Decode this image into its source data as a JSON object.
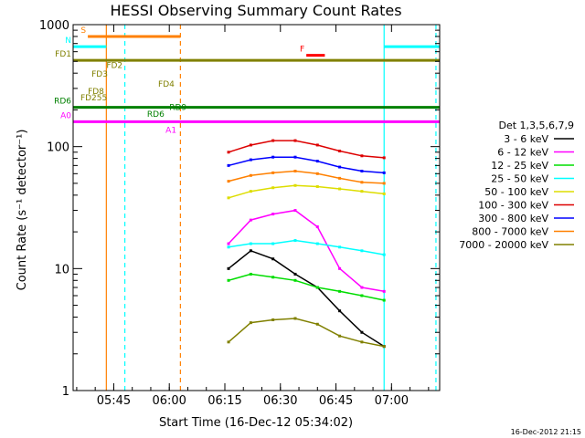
{
  "chart_data": {
    "type": "line",
    "title": "HESSI Observing Summary Count Rates",
    "xlabel": "Start Time (16-Dec-12 05:34:02)",
    "ylabel": "Count Rate (s⁻¹ detector⁻¹)",
    "y_scale": "log",
    "ylim": [
      1,
      1000
    ],
    "xlim": [
      "05:34:02",
      "07:13:00"
    ],
    "x_tick_labels": [
      "05:45",
      "06:00",
      "06:15",
      "06:30",
      "06:45",
      "07:00"
    ],
    "y_tick_labels": [
      "1",
      "10",
      "100",
      "1000"
    ],
    "footer_timestamp": "16-Dec-2012 21:15",
    "legend_title": "Det 1,3,5,6,7,9",
    "legend_position": "right",
    "series": [
      {
        "name": "3 - 6 keV",
        "color": "#000000",
        "x": [
          "06:16",
          "06:22",
          "06:28",
          "06:34",
          "06:40",
          "06:46",
          "06:52",
          "06:58"
        ],
        "y": [
          10,
          14,
          12,
          9,
          7,
          4.5,
          3,
          2.3
        ]
      },
      {
        "name": "6 - 12 keV",
        "color": "#ff00ff",
        "x": [
          "06:16",
          "06:22",
          "06:28",
          "06:34",
          "06:40",
          "06:46",
          "06:52",
          "06:58"
        ],
        "y": [
          16,
          25,
          28,
          30,
          22,
          10,
          7,
          6.5
        ]
      },
      {
        "name": "12 - 25 keV",
        "color": "#00dd00",
        "x": [
          "06:16",
          "06:22",
          "06:28",
          "06:34",
          "06:40",
          "06:46",
          "06:52",
          "06:58"
        ],
        "y": [
          8,
          9,
          8.5,
          8,
          7,
          6.5,
          6,
          5.5
        ]
      },
      {
        "name": "25 - 50 keV",
        "color": "#00ffff",
        "x": [
          "06:16",
          "06:22",
          "06:28",
          "06:34",
          "06:40",
          "06:46",
          "06:52",
          "06:58"
        ],
        "y": [
          15,
          16,
          16,
          17,
          16,
          15,
          14,
          13
        ]
      },
      {
        "name": "50 - 100 keV",
        "color": "#dddd00",
        "x": [
          "06:16",
          "06:22",
          "06:28",
          "06:34",
          "06:40",
          "06:46",
          "06:52",
          "06:58"
        ],
        "y": [
          38,
          43,
          46,
          48,
          47,
          45,
          43,
          41
        ]
      },
      {
        "name": "100 - 300 keV",
        "color": "#dd0000",
        "x": [
          "06:16",
          "06:22",
          "06:28",
          "06:34",
          "06:40",
          "06:46",
          "06:52",
          "06:58"
        ],
        "y": [
          90,
          103,
          112,
          112,
          103,
          92,
          84,
          81
        ]
      },
      {
        "name": "300 - 800 keV",
        "color": "#0000ff",
        "x": [
          "06:16",
          "06:22",
          "06:28",
          "06:34",
          "06:40",
          "06:46",
          "06:52",
          "06:58"
        ],
        "y": [
          70,
          78,
          82,
          82,
          76,
          68,
          63,
          61
        ]
      },
      {
        "name": "800 - 7000 keV",
        "color": "#ff8000",
        "x": [
          "06:16",
          "06:22",
          "06:28",
          "06:34",
          "06:40",
          "06:46",
          "06:52",
          "06:58"
        ],
        "y": [
          52,
          58,
          61,
          63,
          60,
          55,
          51,
          50
        ]
      },
      {
        "name": "7000 - 20000 keV",
        "color": "#808000",
        "x": [
          "06:16",
          "06:22",
          "06:28",
          "06:34",
          "06:40",
          "06:46",
          "06:52",
          "06:58"
        ],
        "y": [
          2.5,
          3.6,
          3.8,
          3.9,
          3.5,
          2.8,
          2.5,
          2.3
        ]
      }
    ],
    "state_bars": [
      {
        "label": "S",
        "color": "#ff8000",
        "y": 800,
        "x1": "05:38",
        "x2": "06:03"
      },
      {
        "label": "N",
        "color": "#00ffff",
        "y": 660,
        "x1": "05:34",
        "x2": "05:43"
      },
      {
        "label": "",
        "color": "#00ffff",
        "y": 660,
        "x1": "06:58",
        "x2": "07:13"
      },
      {
        "label": "F",
        "color": "#ff0000",
        "y": 560,
        "x1": "06:37",
        "x2": "06:42"
      },
      {
        "label": "FD1",
        "color": "#808000",
        "y": 510,
        "x1": "05:34",
        "x2": "07:13"
      },
      {
        "label": "RD6",
        "color": "#008000",
        "y": 210,
        "x1": "05:34",
        "x2": "07:13"
      },
      {
        "label": "A0",
        "color": "#ff00ff",
        "y": 160,
        "x1": "05:34",
        "x2": "07:13"
      }
    ],
    "annotations": [
      {
        "text": "FD2",
        "color": "#808000",
        "x": "05:43",
        "y": 440
      },
      {
        "text": "FD3",
        "color": "#808000",
        "x": "05:39",
        "y": 375
      },
      {
        "text": "FD4",
        "color": "#808000",
        "x": "05:57",
        "y": 310
      },
      {
        "text": "FD8",
        "color": "#808000",
        "x": "05:38",
        "y": 270
      },
      {
        "text": "FD255",
        "color": "#808000",
        "x": "05:36",
        "y": 240
      },
      {
        "text": "RD6",
        "color": "#008000",
        "x": "05:54",
        "y": 175
      },
      {
        "text": "RD9",
        "color": "#008000",
        "x": "06:00",
        "y": 200
      },
      {
        "text": "A1",
        "color": "#ff00ff",
        "x": "05:59",
        "y": 130
      }
    ],
    "vertical_lines": [
      {
        "x": "05:43",
        "color": "#ff8000",
        "style": "solid"
      },
      {
        "x": "05:48",
        "color": "#00ffff",
        "style": "dashed"
      },
      {
        "x": "06:03",
        "color": "#ff8000",
        "style": "dashed"
      },
      {
        "x": "06:58",
        "color": "#00ffff",
        "style": "solid"
      },
      {
        "x": "07:12",
        "color": "#00ffff",
        "style": "dashed"
      }
    ]
  }
}
